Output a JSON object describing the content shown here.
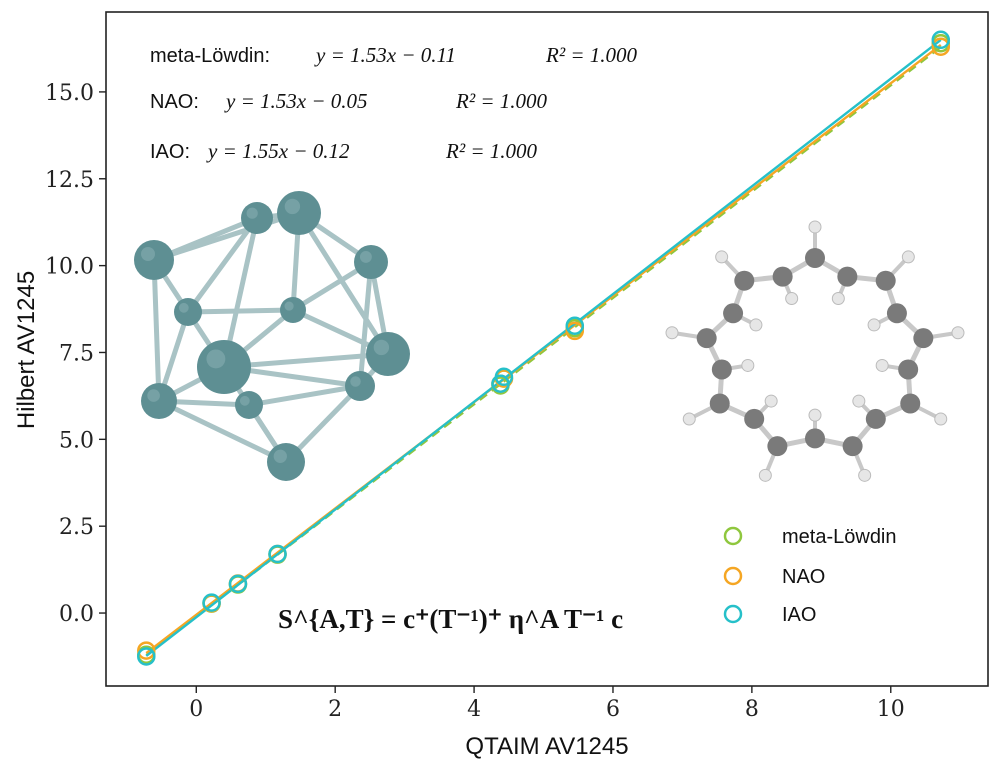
{
  "chart_data": {
    "type": "scatter",
    "xlabel": "QTAIM AV1245",
    "ylabel": "Hilbert AV1245",
    "xlim": [
      -1.3,
      11.4
    ],
    "ylim": [
      -2.1,
      17.3
    ],
    "xticks": [
      0,
      2,
      4,
      6,
      8,
      10
    ],
    "yticks": [
      0.0,
      2.5,
      5.0,
      7.5,
      10.0,
      12.5,
      15.0
    ],
    "xtick_labels": [
      "0",
      "2",
      "4",
      "6",
      "8",
      "10"
    ],
    "ytick_labels": [
      "0.0",
      "2.5",
      "5.0",
      "7.5",
      "10.0",
      "12.5",
      "15.0"
    ],
    "grid": false,
    "legend_position": "bottom-right",
    "series": [
      {
        "name": "meta-Löwdin",
        "color": "#8fc73e",
        "fit": {
          "slope": 1.53,
          "intercept": -0.11
        },
        "points": [
          [
            -0.72,
            -1.2
          ],
          [
            0.22,
            0.27
          ],
          [
            0.6,
            0.82
          ],
          [
            1.17,
            1.68
          ],
          [
            4.38,
            6.55
          ],
          [
            4.43,
            6.75
          ],
          [
            5.45,
            8.2
          ],
          [
            10.72,
            16.4
          ]
        ]
      },
      {
        "name": "NAO",
        "color": "#f5a623",
        "fit": {
          "slope": 1.53,
          "intercept": -0.05
        },
        "points": [
          [
            -0.72,
            -1.08
          ],
          [
            0.22,
            0.28
          ],
          [
            0.6,
            0.85
          ],
          [
            1.17,
            1.7
          ],
          [
            4.38,
            6.6
          ],
          [
            4.43,
            6.75
          ],
          [
            5.45,
            8.12
          ],
          [
            10.72,
            16.3
          ]
        ]
      },
      {
        "name": "IAO",
        "color": "#26c0c9",
        "fit": {
          "slope": 1.55,
          "intercept": -0.12
        },
        "points": [
          [
            -0.72,
            -1.25
          ],
          [
            0.22,
            0.3
          ],
          [
            0.6,
            0.84
          ],
          [
            1.17,
            1.7
          ],
          [
            4.38,
            6.6
          ],
          [
            4.43,
            6.8
          ],
          [
            5.45,
            8.27
          ],
          [
            10.72,
            16.5
          ]
        ]
      }
    ],
    "annotations": [
      {
        "name": "meta-Löwdin:",
        "equation": "y = 1.53x − 0.11",
        "r2": "R² = 1.000"
      },
      {
        "name": "NAO:",
        "equation": "y = 1.53x − 0.05",
        "r2": "R² = 1.000"
      },
      {
        "name": "IAO:",
        "equation": "y = 1.55x − 0.12",
        "r2": "R² = 1.000"
      }
    ],
    "formula": "S^{A,T} = c⁺(T⁻¹)⁺ η^A T⁻¹ c",
    "insets": [
      "cluster-molecule-illustration",
      "ring-molecule-illustration"
    ]
  },
  "colors": {
    "cluster_atom": "#5e8f93",
    "cluster_bond": "#a9c3c5",
    "ring_carbon": "#7a7a7a",
    "ring_hydrogen": "#e6e6e6",
    "ring_bond": "#c8c8c8"
  }
}
